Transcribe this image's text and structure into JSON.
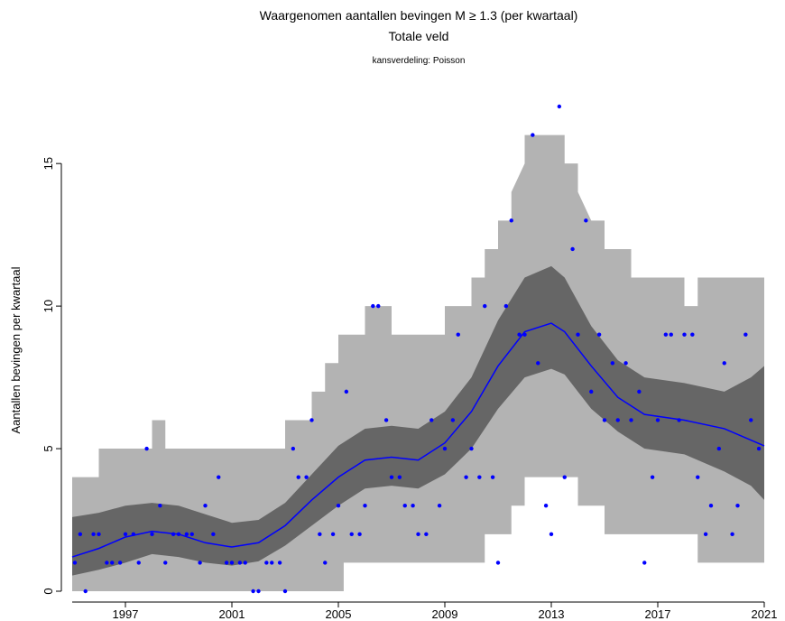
{
  "chart_data": {
    "type": "scatter",
    "title": "Waargenomen aantallen bevingen M ≥ 1.3 (per kwartaal)",
    "subtitle": "Totale veld",
    "note": "kansverdeling: Poisson",
    "xlabel": "",
    "ylabel": "Aantallen bevingen per kwartaal",
    "xlim": [
      1995.0,
      2021.0
    ],
    "ylim": [
      0,
      17
    ],
    "x_ticks": [
      "1997",
      "2001",
      "2005",
      "2009",
      "2013",
      "2017",
      "2021"
    ],
    "y_ticks": [
      "0",
      "5",
      "10",
      "15"
    ],
    "colors": {
      "outer_band": "#b3b3b3",
      "inner_band": "#666666",
      "trend_line": "#0000ff",
      "points": "#0000ff"
    },
    "trend": [
      [
        1995.0,
        1.2
      ],
      [
        1996.0,
        1.5
      ],
      [
        1997.0,
        1.9
      ],
      [
        1998.0,
        2.1
      ],
      [
        1999.0,
        2.0
      ],
      [
        2000.0,
        1.7
      ],
      [
        2001.0,
        1.55
      ],
      [
        2002.0,
        1.7
      ],
      [
        2003.0,
        2.3
      ],
      [
        2004.0,
        3.2
      ],
      [
        2005.0,
        4.0
      ],
      [
        2006.0,
        4.6
      ],
      [
        2007.0,
        4.7
      ],
      [
        2008.0,
        4.6
      ],
      [
        2009.0,
        5.2
      ],
      [
        2010.0,
        6.3
      ],
      [
        2011.0,
        7.9
      ],
      [
        2012.0,
        9.1
      ],
      [
        2013.0,
        9.4
      ],
      [
        2013.5,
        9.1
      ],
      [
        2014.5,
        7.9
      ],
      [
        2015.5,
        6.8
      ],
      [
        2016.5,
        6.2
      ],
      [
        2018.0,
        6.0
      ],
      [
        2019.5,
        5.7
      ],
      [
        2021.0,
        5.1
      ]
    ],
    "inner_band": [
      [
        1995.0,
        0.55,
        2.6
      ],
      [
        1996.0,
        0.75,
        2.75
      ],
      [
        1997.0,
        1.0,
        3.0
      ],
      [
        1998.0,
        1.3,
        3.1
      ],
      [
        1999.0,
        1.2,
        3.0
      ],
      [
        2000.0,
        1.0,
        2.7
      ],
      [
        2001.0,
        0.9,
        2.4
      ],
      [
        2002.0,
        1.05,
        2.5
      ],
      [
        2003.0,
        1.6,
        3.1
      ],
      [
        2004.0,
        2.3,
        4.1
      ],
      [
        2005.0,
        3.0,
        5.1
      ],
      [
        2006.0,
        3.6,
        5.7
      ],
      [
        2007.0,
        3.7,
        5.8
      ],
      [
        2008.0,
        3.6,
        5.7
      ],
      [
        2009.0,
        4.1,
        6.3
      ],
      [
        2010.0,
        5.0,
        7.5
      ],
      [
        2011.0,
        6.4,
        9.5
      ],
      [
        2012.0,
        7.5,
        11.0
      ],
      [
        2013.0,
        7.8,
        11.4
      ],
      [
        2013.5,
        7.6,
        11.0
      ],
      [
        2014.5,
        6.4,
        9.3
      ],
      [
        2015.5,
        5.6,
        8.1
      ],
      [
        2016.5,
        5.0,
        7.5
      ],
      [
        2018.0,
        4.8,
        7.3
      ],
      [
        2019.5,
        4.2,
        7.0
      ],
      [
        2020.5,
        3.7,
        7.5
      ],
      [
        2021.0,
        3.2,
        7.9
      ]
    ],
    "outer_band": [
      [
        1995.0,
        0,
        4
      ],
      [
        1996.0,
        0,
        4
      ],
      [
        1996.0,
        0,
        5
      ],
      [
        1998.0,
        0,
        5
      ],
      [
        1998.0,
        0,
        6
      ],
      [
        1998.5,
        0,
        6
      ],
      [
        1998.5,
        0,
        5
      ],
      [
        2003.0,
        0,
        5
      ],
      [
        2003.0,
        0,
        6
      ],
      [
        2004.0,
        0,
        6
      ],
      [
        2004.0,
        0,
        7
      ],
      [
        2004.5,
        0,
        7
      ],
      [
        2004.5,
        0,
        8
      ],
      [
        2005.0,
        0,
        8
      ],
      [
        2005.0,
        0,
        9
      ],
      [
        2005.2,
        0,
        9
      ],
      [
        2005.2,
        1,
        9
      ],
      [
        2006.0,
        1,
        9
      ],
      [
        2006.0,
        1,
        10
      ],
      [
        2007.0,
        1,
        10
      ],
      [
        2007.0,
        1,
        9
      ],
      [
        2009.0,
        1,
        9
      ],
      [
        2009.0,
        1,
        10
      ],
      [
        2010.0,
        1,
        10
      ],
      [
        2010.0,
        1,
        11
      ],
      [
        2010.5,
        1,
        11
      ],
      [
        2010.5,
        2,
        12
      ],
      [
        2011.0,
        2,
        12
      ],
      [
        2011.0,
        2,
        13
      ],
      [
        2011.5,
        2,
        13
      ],
      [
        2011.5,
        3,
        14
      ],
      [
        2012.0,
        3,
        15
      ],
      [
        2012.0,
        4,
        16
      ],
      [
        2013.5,
        4,
        16
      ],
      [
        2013.5,
        4,
        15
      ],
      [
        2014.0,
        4,
        15
      ],
      [
        2014.0,
        3,
        14
      ],
      [
        2014.5,
        3,
        13
      ],
      [
        2015.0,
        3,
        13
      ],
      [
        2015.0,
        2,
        12
      ],
      [
        2016.0,
        2,
        12
      ],
      [
        2016.0,
        2,
        11
      ],
      [
        2018.0,
        2,
        11
      ],
      [
        2018.0,
        2,
        10
      ],
      [
        2018.5,
        2,
        10
      ],
      [
        2018.5,
        1,
        11
      ],
      [
        2021.0,
        1,
        11
      ]
    ],
    "points": [
      [
        1995.1,
        1
      ],
      [
        1995.3,
        2
      ],
      [
        1995.5,
        0
      ],
      [
        1995.8,
        2
      ],
      [
        1996.0,
        2
      ],
      [
        1996.3,
        1
      ],
      [
        1996.5,
        1
      ],
      [
        1996.8,
        1
      ],
      [
        1997.0,
        2
      ],
      [
        1997.3,
        2
      ],
      [
        1997.5,
        1
      ],
      [
        1997.8,
        5
      ],
      [
        1998.0,
        2
      ],
      [
        1998.3,
        3
      ],
      [
        1998.5,
        1
      ],
      [
        1998.8,
        2
      ],
      [
        1999.0,
        2
      ],
      [
        1999.3,
        2
      ],
      [
        1999.5,
        2
      ],
      [
        1999.8,
        1
      ],
      [
        2000.0,
        3
      ],
      [
        2000.3,
        2
      ],
      [
        2000.5,
        4
      ],
      [
        2000.8,
        1
      ],
      [
        2001.0,
        1
      ],
      [
        2001.3,
        1
      ],
      [
        2001.5,
        1
      ],
      [
        2001.8,
        0
      ],
      [
        2002.0,
        0
      ],
      [
        2002.3,
        1
      ],
      [
        2002.5,
        1
      ],
      [
        2002.8,
        1
      ],
      [
        2003.0,
        0
      ],
      [
        2003.3,
        5
      ],
      [
        2003.5,
        4
      ],
      [
        2003.8,
        4
      ],
      [
        2004.0,
        6
      ],
      [
        2004.3,
        2
      ],
      [
        2004.5,
        1
      ],
      [
        2004.8,
        2
      ],
      [
        2005.0,
        3
      ],
      [
        2005.3,
        7
      ],
      [
        2005.5,
        2
      ],
      [
        2005.8,
        2
      ],
      [
        2006.0,
        3
      ],
      [
        2006.3,
        10
      ],
      [
        2006.5,
        10
      ],
      [
        2006.8,
        6
      ],
      [
        2007.0,
        4
      ],
      [
        2007.3,
        4
      ],
      [
        2007.5,
        3
      ],
      [
        2007.8,
        3
      ],
      [
        2008.0,
        2
      ],
      [
        2008.3,
        2
      ],
      [
        2008.5,
        6
      ],
      [
        2008.8,
        3
      ],
      [
        2009.0,
        5
      ],
      [
        2009.3,
        6
      ],
      [
        2009.5,
        9
      ],
      [
        2009.8,
        4
      ],
      [
        2010.0,
        5
      ],
      [
        2010.3,
        4
      ],
      [
        2010.5,
        10
      ],
      [
        2010.8,
        4
      ],
      [
        2011.0,
        1
      ],
      [
        2011.3,
        10
      ],
      [
        2011.5,
        13
      ],
      [
        2011.8,
        9
      ],
      [
        2012.0,
        9
      ],
      [
        2012.3,
        16
      ],
      [
        2012.5,
        8
      ],
      [
        2012.8,
        3
      ],
      [
        2013.0,
        2
      ],
      [
        2013.3,
        17
      ],
      [
        2013.5,
        4
      ],
      [
        2013.8,
        12
      ],
      [
        2014.0,
        9
      ],
      [
        2014.3,
        13
      ],
      [
        2014.5,
        7
      ],
      [
        2014.8,
        9
      ],
      [
        2015.0,
        6
      ],
      [
        2015.3,
        8
      ],
      [
        2015.5,
        6
      ],
      [
        2015.8,
        8
      ],
      [
        2016.0,
        6
      ],
      [
        2016.3,
        7
      ],
      [
        2016.5,
        1
      ],
      [
        2016.8,
        4
      ],
      [
        2017.0,
        6
      ],
      [
        2017.3,
        9
      ],
      [
        2017.5,
        9
      ],
      [
        2017.8,
        6
      ],
      [
        2018.0,
        9
      ],
      [
        2018.3,
        9
      ],
      [
        2018.5,
        4
      ],
      [
        2018.8,
        2
      ],
      [
        2019.0,
        3
      ],
      [
        2019.3,
        5
      ],
      [
        2019.5,
        8
      ],
      [
        2019.8,
        2
      ],
      [
        2020.0,
        3
      ],
      [
        2020.3,
        9
      ],
      [
        2020.5,
        6
      ],
      [
        2020.8,
        5
      ]
    ]
  }
}
